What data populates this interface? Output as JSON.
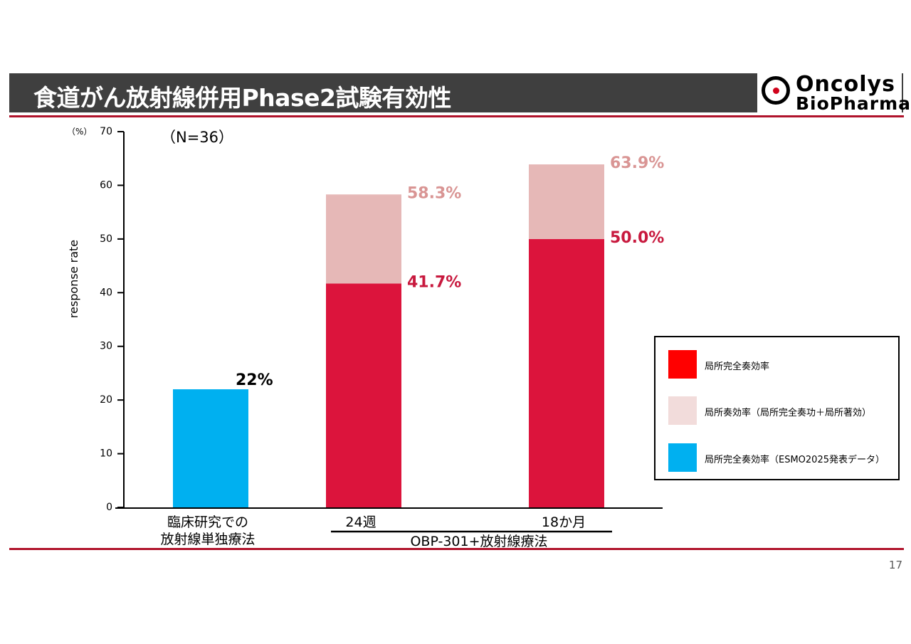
{
  "header": {
    "title": "食道がん放射線併用Phase2試験有効性",
    "logo_line1": "Oncolys",
    "logo_line2": "BioPharma"
  },
  "page_number": "17",
  "chart_data": {
    "type": "bar",
    "stacked": true,
    "y_unit": "（%）",
    "ylabel": "response rate",
    "ylim": [
      0,
      70
    ],
    "yticks": [
      0,
      10,
      20,
      30,
      40,
      50,
      60,
      70
    ],
    "annotation": "（N=36）",
    "categories": [
      {
        "label_lines": [
          "臨床研究での",
          "放射線単独療法"
        ]
      },
      {
        "label_lines": [
          "24週"
        ]
      },
      {
        "label_lines": [
          "18か月"
        ]
      }
    ],
    "group_label": "OBP-301+放射線療法",
    "bars": [
      {
        "segments": [
          {
            "series": 2,
            "value": 22
          }
        ],
        "labels": [
          {
            "text": "22%",
            "value": 22,
            "color": "#000000"
          }
        ]
      },
      {
        "segments": [
          {
            "series": 0,
            "value": 41.7
          },
          {
            "series": 1,
            "value": 16.6
          }
        ],
        "labels": [
          {
            "text": "41.7%",
            "value": 41.7,
            "color": "#c8193e"
          },
          {
            "text": "58.3%",
            "value": 58.3,
            "color": "#d99594"
          }
        ]
      },
      {
        "segments": [
          {
            "series": 0,
            "value": 50.0
          },
          {
            "series": 1,
            "value": 13.9
          }
        ],
        "labels": [
          {
            "text": "50.0%",
            "value": 50.0,
            "color": "#c8193e"
          },
          {
            "text": "63.9%",
            "value": 63.9,
            "color": "#d99594"
          }
        ]
      }
    ],
    "series": [
      {
        "name": "局所完全奏効率",
        "bar_color": "#dc143c",
        "legend_color": "#ff0000"
      },
      {
        "name": "局所奏効率（局所完全奏功＋局所著効）",
        "bar_color": "#e6b8b7",
        "legend_color": "#f2dcdb"
      },
      {
        "name": "局所完全奏効率（ESMO2025発表データ）",
        "bar_color": "#00b0f0",
        "legend_color": "#00b0f0"
      }
    ]
  }
}
